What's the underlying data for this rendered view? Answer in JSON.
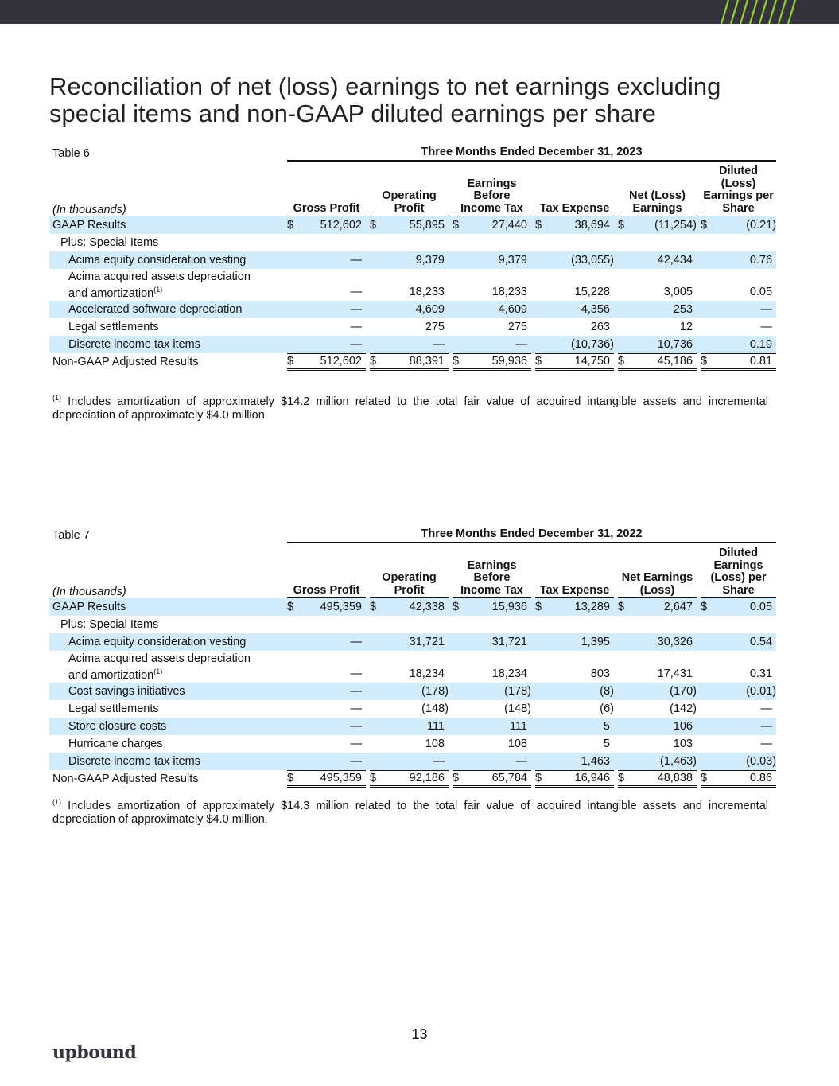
{
  "title": "Reconciliation of net (loss) earnings to net earnings excluding special items and non-GAAP diluted earnings per share",
  "colors": {
    "bar": "#35333e",
    "accent": "#8ed42c",
    "shade": "#d3ecfb"
  },
  "tables": [
    {
      "label": "Table 6",
      "period": "Three Months Ended December 31, 2023",
      "units": "(In thousands)",
      "columns": [
        "Gross Profit",
        "Operating Profit",
        "Earnings Before Income Tax",
        "Tax Expense",
        "Net (Loss) Earnings",
        "Diluted (Loss) Earnings per Share"
      ],
      "rows": [
        {
          "label": "GAAP Results",
          "indent": 0,
          "shade": true,
          "dollar": true,
          "values": [
            "512,602",
            "55,895",
            "27,440",
            "38,694",
            "(11,254)",
            "(0.21)"
          ]
        },
        {
          "label": "Plus: Special Items",
          "indent": 1,
          "shade": false,
          "values": []
        },
        {
          "label": "Acima equity consideration vesting",
          "indent": 2,
          "shade": true,
          "values": [
            "—",
            "9,379",
            "9,379",
            "(33,055)",
            "42,434",
            "0.76"
          ]
        },
        {
          "label": "Acima acquired assets depreciation and amortization",
          "footnote": "(1)",
          "indent": 2,
          "shade": false,
          "values": [
            "—",
            "18,233",
            "18,233",
            "15,228",
            "3,005",
            "0.05"
          ]
        },
        {
          "label": "Accelerated software depreciation",
          "indent": 2,
          "shade": true,
          "values": [
            "—",
            "4,609",
            "4,609",
            "4,356",
            "253",
            "—"
          ]
        },
        {
          "label": "Legal settlements",
          "indent": 2,
          "shade": false,
          "values": [
            "—",
            "275",
            "275",
            "263",
            "12",
            "—"
          ]
        },
        {
          "label": "Discrete income tax items",
          "indent": 2,
          "shade": true,
          "values": [
            "—",
            "—",
            "—",
            "(10,736)",
            "10,736",
            "0.19"
          ]
        },
        {
          "label": "Non-GAAP Adjusted Results",
          "indent": 0,
          "shade": false,
          "dollar": true,
          "total": true,
          "values": [
            "512,602",
            "88,391",
            "59,936",
            "14,750",
            "45,186",
            "0.81"
          ]
        }
      ],
      "footnote_mark": "(1)",
      "footnote": "Includes amortization of approximately $14.2 million related to the total fair value of acquired intangible assets and incremental depreciation of approximately $4.0 million."
    },
    {
      "label": "Table 7",
      "period": "Three Months Ended December 31, 2022",
      "units": "(In thousands)",
      "columns": [
        "Gross Profit",
        "Operating Profit",
        "Earnings Before Income Tax",
        "Tax Expense",
        "Net Earnings (Loss)",
        "Diluted Earnings (Loss) per Share"
      ],
      "rows": [
        {
          "label": "GAAP Results",
          "indent": 0,
          "shade": true,
          "dollar": true,
          "values": [
            "495,359",
            "42,338",
            "15,936",
            "13,289",
            "2,647",
            "0.05"
          ]
        },
        {
          "label": "Plus: Special Items",
          "indent": 1,
          "shade": false,
          "values": []
        },
        {
          "label": "Acima equity consideration vesting",
          "indent": 2,
          "shade": true,
          "values": [
            "—",
            "31,721",
            "31,721",
            "1,395",
            "30,326",
            "0.54"
          ]
        },
        {
          "label": "Acima acquired assets depreciation and amortization",
          "footnote": "(1)",
          "indent": 2,
          "shade": false,
          "values": [
            "—",
            "18,234",
            "18,234",
            "803",
            "17,431",
            "0.31"
          ]
        },
        {
          "label": "Cost savings initiatives",
          "indent": 2,
          "shade": true,
          "values": [
            "—",
            "(178)",
            "(178)",
            "(8)",
            "(170)",
            "(0.01)"
          ]
        },
        {
          "label": "Legal settlements",
          "indent": 2,
          "shade": false,
          "values": [
            "—",
            "(148)",
            "(148)",
            "(6)",
            "(142)",
            "—"
          ]
        },
        {
          "label": "Store closure costs",
          "indent": 2,
          "shade": true,
          "values": [
            "—",
            "111",
            "111",
            "5",
            "106",
            "—"
          ]
        },
        {
          "label": "Hurricane charges",
          "indent": 2,
          "shade": false,
          "values": [
            "—",
            "108",
            "108",
            "5",
            "103",
            "—"
          ]
        },
        {
          "label": "Discrete income tax items",
          "indent": 2,
          "shade": true,
          "values": [
            "—",
            "—",
            "—",
            "1,463",
            "(1,463)",
            "(0.03)"
          ]
        },
        {
          "label": "Non-GAAP Adjusted Results",
          "indent": 0,
          "shade": false,
          "dollar": true,
          "total": true,
          "values": [
            "495,359",
            "92,186",
            "65,784",
            "16,946",
            "48,838",
            "0.86"
          ]
        }
      ],
      "footnote_mark": "(1)",
      "footnote": "Includes amortization of approximately $14.3 million related to the total fair value of acquired intangible assets and incremental depreciation of approximately $4.0 million."
    }
  ],
  "page_number": "13",
  "logo": "upbound"
}
